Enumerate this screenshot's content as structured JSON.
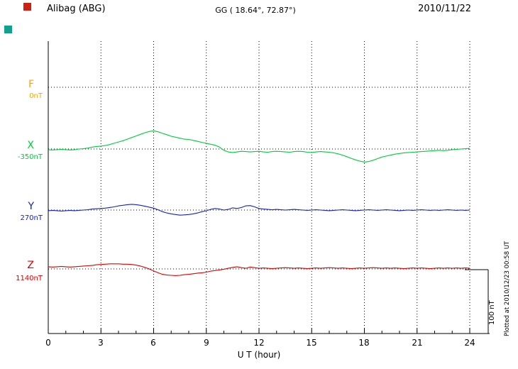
{
  "header": {
    "station": "Alibag (ABG)",
    "coords": "GG ( 18.64°,  72.87°)",
    "date": "2010/11/22"
  },
  "axis": {
    "xlabel": "U T (hour)",
    "xticks": [
      "0",
      "3",
      "6",
      "9",
      "12",
      "15",
      "18",
      "21",
      "24"
    ],
    "grid_hours": [
      3,
      6,
      9,
      12,
      15,
      18,
      21,
      24
    ]
  },
  "scale_bar": {
    "label": "100 nT",
    "nT": 100
  },
  "footer_right": "Plotted at 2010/12/23 00:58 UT",
  "decorations": {
    "square1_color": "#cc2211",
    "square2_color": "#11a08c"
  },
  "chart_data": {
    "type": "line",
    "title": "Alibag (ABG) magnetogram 2010/11/22",
    "xlabel": "U T (hour)",
    "x_range_hours": [
      0,
      24
    ],
    "x_step_hours": 0.25,
    "grid": "dotted",
    "scale_nT": 100,
    "series": [
      {
        "name": "F",
        "label": "F",
        "baseline_label": "0nT",
        "color": "#ffa500",
        "offsets_nT": []
      },
      {
        "name": "X",
        "label": "X",
        "baseline_label": "-350nT",
        "color": "#00cc3c",
        "offsets_nT": [
          -1,
          -1.5,
          -1,
          -0.5,
          -1,
          -1.5,
          -1,
          0,
          0.5,
          1.5,
          3,
          4,
          4.5,
          5.5,
          7,
          9,
          11,
          13,
          15.5,
          18,
          20.5,
          23,
          25.5,
          27.5,
          28.5,
          27,
          24.5,
          22.5,
          20,
          18.5,
          17,
          15.5,
          15,
          13.5,
          12,
          10.5,
          9,
          7.5,
          6,
          3,
          -2,
          -4.5,
          -5.5,
          -4.5,
          -3.5,
          -4,
          -4.5,
          -4,
          -3.5,
          -4.5,
          -5,
          -4,
          -3.5,
          -4,
          -4.5,
          -5,
          -4,
          -3.5,
          -4,
          -5,
          -5.5,
          -4.5,
          -4,
          -4.5,
          -5,
          -6,
          -7.5,
          -9.5,
          -12,
          -14.5,
          -17,
          -19,
          -20.5,
          -19.5,
          -17.5,
          -15,
          -12.5,
          -11,
          -9.5,
          -8,
          -7,
          -6,
          -5.5,
          -5,
          -4.5,
          -4,
          -3.5,
          -3,
          -2.5,
          -2,
          -2.5,
          -2,
          -1,
          -0.5,
          0,
          0.5,
          1
        ]
      },
      {
        "name": "Y",
        "label": "Y",
        "baseline_label": "270nT",
        "color": "#1122cc",
        "offsets_nT": [
          -1,
          -0.5,
          -1,
          -1.5,
          -1,
          -0.5,
          -1,
          -0.5,
          0,
          0.5,
          1.5,
          2,
          2.5,
          3,
          4,
          5,
          6.5,
          7.5,
          8.5,
          9,
          8.5,
          7.5,
          6,
          4.5,
          3,
          0.5,
          -2.5,
          -4.5,
          -6,
          -7,
          -8,
          -7.5,
          -7,
          -6,
          -4.5,
          -2.5,
          -1,
          1,
          2.5,
          1.5,
          0,
          1,
          3.5,
          2.5,
          4,
          6.5,
          7,
          5,
          2.5,
          1.5,
          1,
          0.5,
          1,
          0.5,
          0,
          0.5,
          1,
          0.5,
          0,
          -0.5,
          0,
          0.5,
          0,
          -0.5,
          -1,
          -0.5,
          0,
          0.5,
          0,
          -0.5,
          -1,
          -0.5,
          0,
          0.5,
          0,
          -0.5,
          0,
          0.5,
          0,
          -0.5,
          -1,
          -0.5,
          0,
          -0.5,
          0,
          0.5,
          0,
          -0.5,
          0,
          -0.5,
          0,
          0.5,
          0,
          -0.5,
          0,
          -0.5,
          0
        ]
      },
      {
        "name": "Z",
        "label": "Z",
        "baseline_label": "1140nT",
        "color": "#e00000",
        "offsets_nT": [
          3.5,
          3,
          3.5,
          4,
          3.5,
          3,
          3.5,
          4,
          4.5,
          5,
          5.5,
          6.5,
          7,
          7.5,
          8,
          8,
          8,
          7.5,
          7.5,
          7,
          6,
          4.5,
          2.5,
          0,
          -3,
          -6,
          -8.5,
          -9.5,
          -10,
          -10.5,
          -10,
          -9,
          -8.5,
          -7.5,
          -6.5,
          -6,
          -5,
          -3.5,
          -2.5,
          -1.5,
          -0.5,
          1,
          2.5,
          3.5,
          2,
          1,
          3,
          2,
          1,
          1.5,
          1,
          0.5,
          1,
          1.5,
          2,
          1.5,
          1,
          1.5,
          1,
          0.5,
          1,
          1.5,
          1,
          1.5,
          2,
          1.5,
          1,
          1.5,
          1,
          0.5,
          1,
          1.5,
          1,
          1.5,
          2,
          1.5,
          1,
          1.5,
          1,
          1.5,
          1,
          0.5,
          1,
          1.5,
          1,
          1.5,
          1,
          0.5,
          1,
          1.5,
          1,
          1.5,
          1,
          1.5,
          1,
          1.5,
          1
        ]
      }
    ]
  }
}
